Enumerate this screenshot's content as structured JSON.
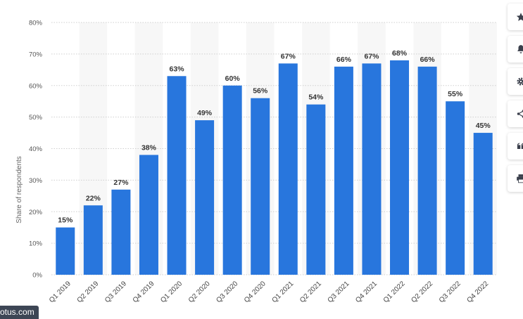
{
  "chart_data": {
    "type": "bar",
    "categories": [
      "Q1 2019",
      "Q2 2019",
      "Q3 2019",
      "Q4 2019",
      "Q1 2020",
      "Q2 2020",
      "Q3 2020",
      "Q4 2020",
      "Q1 2021",
      "Q2 2021",
      "Q3 2021",
      "Q4 2021",
      "Q1 2022",
      "Q2 2022",
      "Q3 2022",
      "Q4 2022"
    ],
    "values": [
      15,
      22,
      27,
      38,
      63,
      49,
      60,
      56,
      67,
      54,
      66,
      67,
      68,
      66,
      55,
      45
    ],
    "value_labels": [
      "15%",
      "22%",
      "27%",
      "38%",
      "63%",
      "49%",
      "60%",
      "56%",
      "67%",
      "54%",
      "66%",
      "67%",
      "68%",
      "66%",
      "55%",
      "45%"
    ],
    "ylabel": "Share of respondents",
    "yticks": [
      "0%",
      "10%",
      "20%",
      "30%",
      "40%",
      "50%",
      "60%",
      "70%",
      "80%"
    ],
    "ylim": [
      0,
      80
    ],
    "grid": true,
    "bar_color": "#2876dd"
  },
  "toolbar": {
    "items": [
      "star-icon",
      "bell-icon",
      "gear-icon",
      "share-icon",
      "quote-icon",
      "print-icon"
    ]
  },
  "watermark": "otus.com"
}
